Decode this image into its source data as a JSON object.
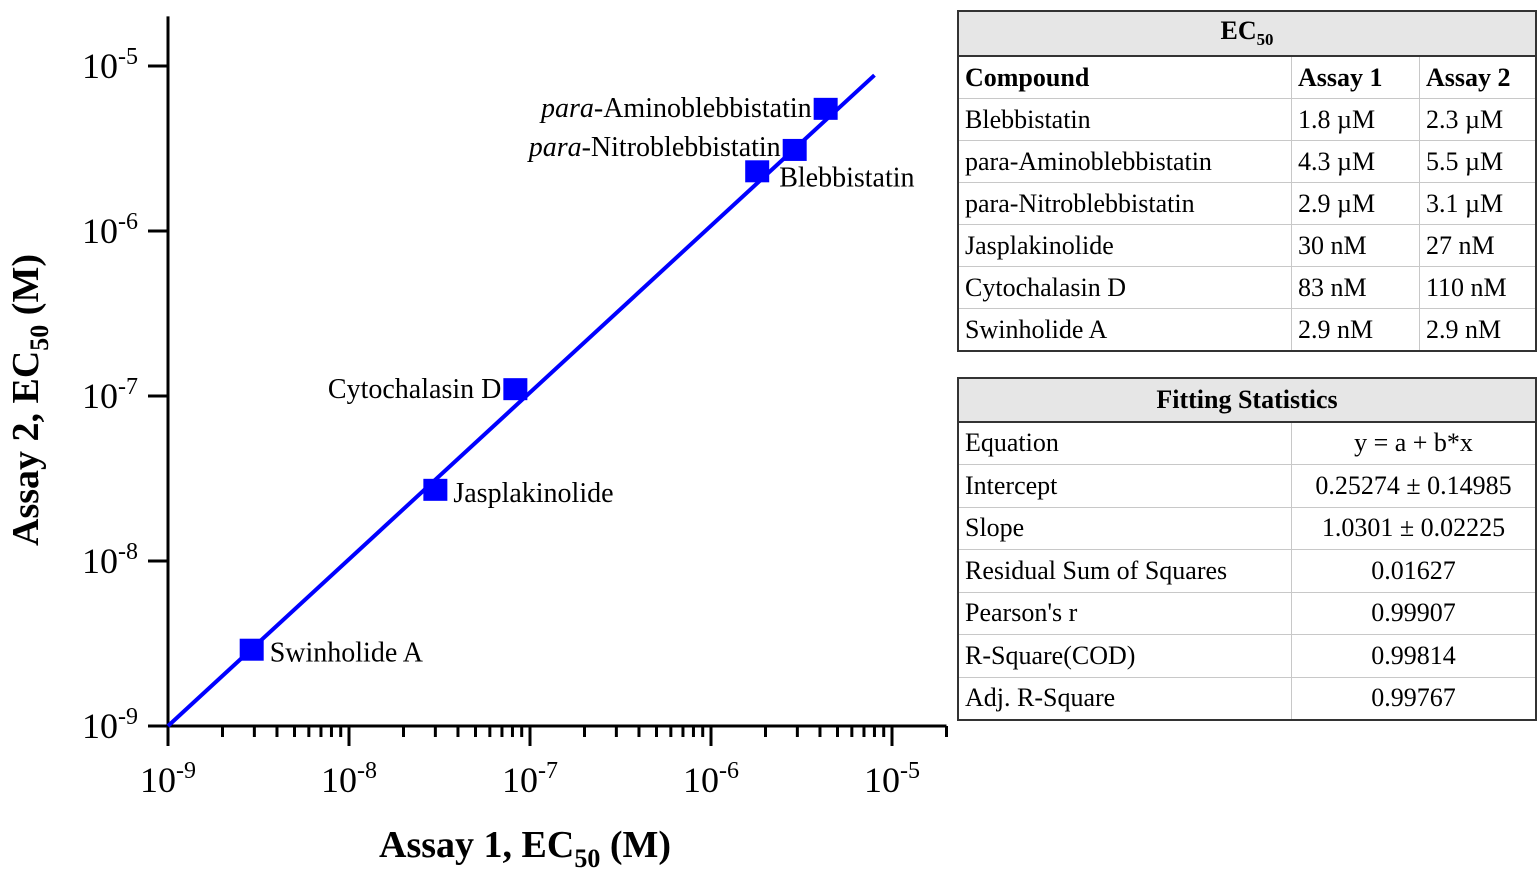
{
  "chart_data": {
    "type": "scatter",
    "xscale": "log",
    "yscale": "log",
    "xlim": [
      1e-09,
      2e-05
    ],
    "ylim": [
      1e-09,
      2e-05
    ],
    "xlabel": {
      "main": "Assay 1, EC",
      "sub": "50",
      "unit": " (M)"
    },
    "ylabel": {
      "main": "Assay 2, EC",
      "sub": "50",
      "unit": " (M)"
    },
    "ticks": [
      {
        "base": "10",
        "exp": "-9",
        "value": 1e-09
      },
      {
        "base": "10",
        "exp": "-8",
        "value": 1e-08
      },
      {
        "base": "10",
        "exp": "-7",
        "value": 1e-07
      },
      {
        "base": "10",
        "exp": "-6",
        "value": 1e-06
      },
      {
        "base": "10",
        "exp": "-5",
        "value": 1e-05
      }
    ],
    "points": [
      {
        "name": "Blebbistatin",
        "italic": "",
        "label": "Blebbistatin",
        "x": 1.8e-06,
        "y": 2.3e-06,
        "side": "right-below"
      },
      {
        "name": "para-Aminoblebbistatin",
        "italic": "para",
        "label": "-Aminoblebbistatin",
        "x": 4.3e-06,
        "y": 5.5e-06,
        "side": "left"
      },
      {
        "name": "para-Nitroblebbistatin",
        "italic": "para",
        "label": "-Nitroblebbistatin",
        "x": 2.9e-06,
        "y": 3.1e-06,
        "side": "left"
      },
      {
        "name": "Jasplakinolide",
        "italic": "",
        "label": "Jasplakinolide",
        "x": 3e-08,
        "y": 2.7e-08,
        "side": "right"
      },
      {
        "name": "Cytochalasin D",
        "italic": "",
        "label": "Cytochalasin D",
        "x": 8.3e-08,
        "y": 1.1e-07,
        "side": "left"
      },
      {
        "name": "Swinholide A",
        "italic": "",
        "label": "Swinholide A",
        "x": 2.9e-09,
        "y": 2.9e-09,
        "side": "right"
      }
    ],
    "fit": {
      "x_range": [
        1e-09,
        8e-06
      ],
      "intercept": 0.25274,
      "slope": 1.0301
    },
    "color": "#0000ff"
  },
  "ec50_table": {
    "title": "EC",
    "title_sub": "50",
    "headers": [
      "Compound",
      "Assay 1",
      "Assay 2"
    ],
    "rows": [
      [
        "Blebbistatin",
        "1.8 µM",
        "2.3 µM"
      ],
      [
        "para-Aminoblebbistatin",
        "4.3 µM",
        "5.5 µM"
      ],
      [
        "para-Nitroblebbistatin",
        "2.9 µM",
        "3.1 µM"
      ],
      [
        "Jasplakinolide",
        "30 nM",
        "27 nM"
      ],
      [
        "Cytochalasin D",
        "83 nM",
        "110 nM"
      ],
      [
        "Swinholide A",
        "2.9 nM",
        "2.9 nM"
      ]
    ]
  },
  "fit_table": {
    "title": "Fitting Statistics",
    "rows": [
      [
        "Equation",
        "y = a + b*x"
      ],
      [
        "Intercept",
        "0.25274 ± 0.14985"
      ],
      [
        "Slope",
        "1.0301 ± 0.02225"
      ],
      [
        "Residual Sum of Squares",
        "0.01627"
      ],
      [
        "Pearson's r",
        "0.99907"
      ],
      [
        "R-Square(COD)",
        "0.99814"
      ],
      [
        "Adj. R-Square",
        "0.99767"
      ]
    ]
  }
}
